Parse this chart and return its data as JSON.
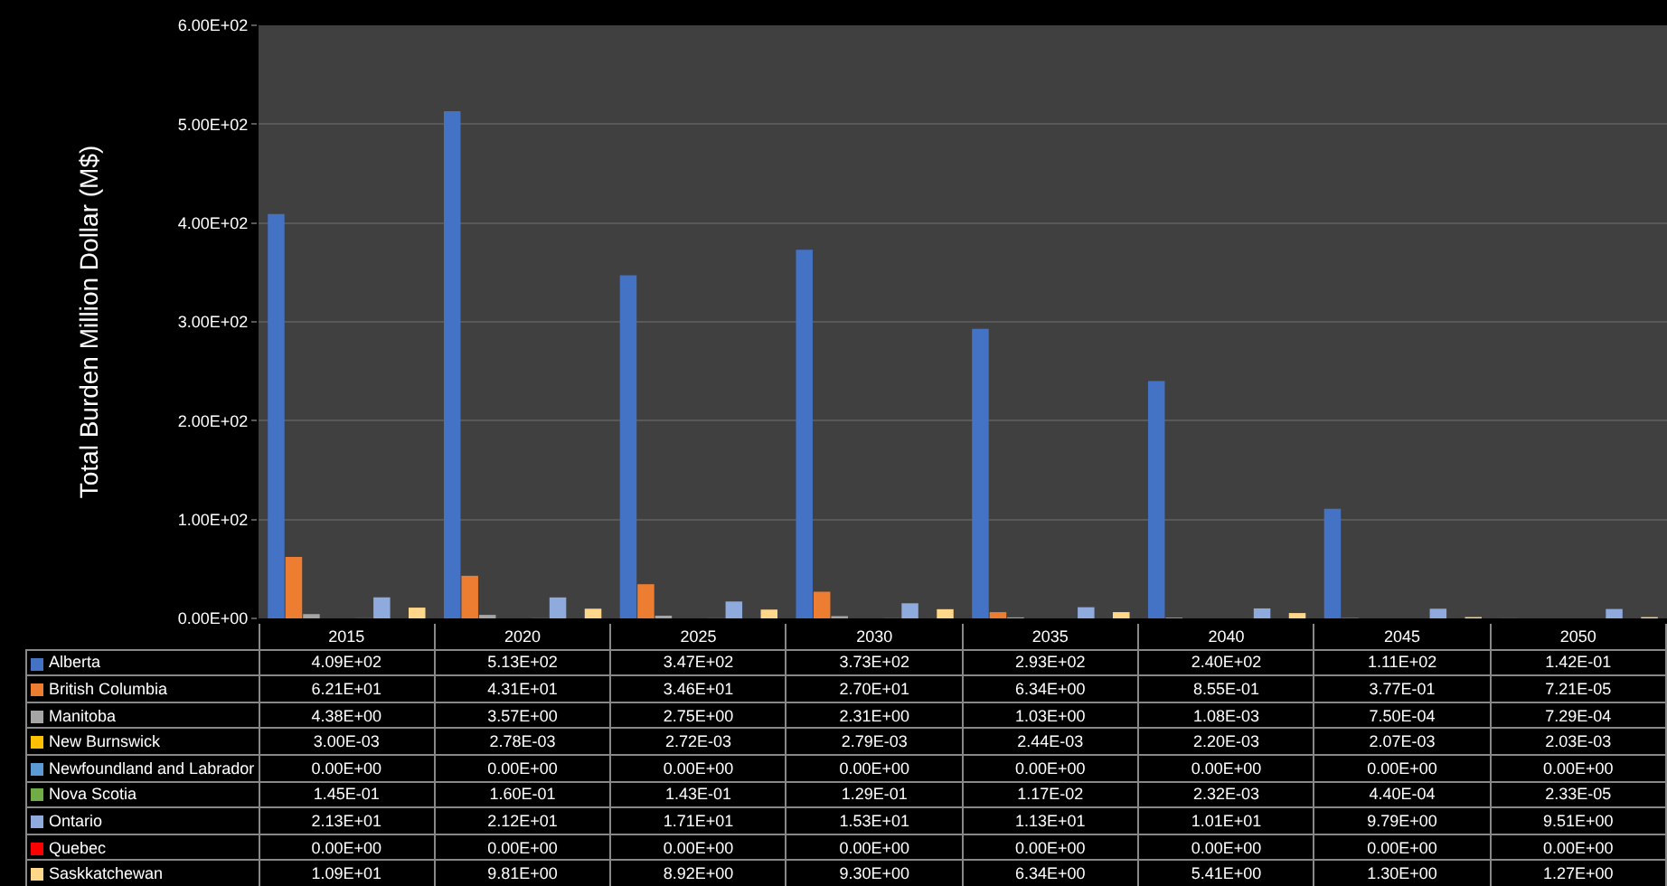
{
  "chart_data": {
    "type": "bar",
    "ylabel": "Total Burden Million Dollar (M$)",
    "categories": [
      "2015",
      "2020",
      "2025",
      "2030",
      "2035",
      "2040",
      "2045",
      "2050"
    ],
    "ylim": [
      0,
      600
    ],
    "yticks": [
      {
        "value": 0,
        "label": "0.00E+00"
      },
      {
        "value": 100,
        "label": "1.00E+02"
      },
      {
        "value": 200,
        "label": "2.00E+02"
      },
      {
        "value": 300,
        "label": "3.00E+02"
      },
      {
        "value": 400,
        "label": "4.00E+02"
      },
      {
        "value": 500,
        "label": "5.00E+02"
      },
      {
        "value": 600,
        "label": "6.00E+02"
      }
    ],
    "grid": "y",
    "legend": "bottom",
    "series": [
      {
        "name": "Alberta",
        "color": "#4472c4",
        "values": [
          409,
          513,
          347,
          373,
          293,
          240,
          111,
          0.142
        ],
        "value_labels": [
          "4.09E+02",
          "5.13E+02",
          "3.47E+02",
          "3.73E+02",
          "2.93E+02",
          "2.40E+02",
          "1.11E+02",
          "1.42E-01"
        ]
      },
      {
        "name": "British Columbia",
        "color": "#ed7d31",
        "values": [
          62.1,
          43.1,
          34.6,
          27.0,
          6.34,
          0.855,
          0.377,
          7.21e-05
        ],
        "value_labels": [
          "6.21E+01",
          "4.31E+01",
          "3.46E+01",
          "2.70E+01",
          "6.34E+00",
          "8.55E-01",
          "3.77E-01",
          "7.21E-05"
        ]
      },
      {
        "name": "Manitoba",
        "color": "#a5a5a5",
        "values": [
          4.38,
          3.57,
          2.75,
          2.31,
          1.03,
          0.00108,
          0.00075,
          0.000729
        ],
        "value_labels": [
          "4.38E+00",
          "3.57E+00",
          "2.75E+00",
          "2.31E+00",
          "1.03E+00",
          "1.08E-03",
          "7.50E-04",
          "7.29E-04"
        ]
      },
      {
        "name": "New Burnswick",
        "color": "#ffc000",
        "values": [
          0.003,
          0.00278,
          0.00272,
          0.00279,
          0.00244,
          0.0022,
          0.00207,
          0.00203
        ],
        "value_labels": [
          "3.00E-03",
          "2.78E-03",
          "2.72E-03",
          "2.79E-03",
          "2.44E-03",
          "2.20E-03",
          "2.07E-03",
          "2.03E-03"
        ]
      },
      {
        "name": "Newfoundland and Labrador",
        "color": "#5b9bd5",
        "values": [
          0,
          0,
          0,
          0,
          0,
          0,
          0,
          0
        ],
        "value_labels": [
          "0.00E+00",
          "0.00E+00",
          "0.00E+00",
          "0.00E+00",
          "0.00E+00",
          "0.00E+00",
          "0.00E+00",
          "0.00E+00"
        ]
      },
      {
        "name": "Nova Scotia",
        "color": "#70ad47",
        "values": [
          0.145,
          0.16,
          0.143,
          0.129,
          0.0117,
          0.00232,
          0.00044,
          2.33e-05
        ],
        "value_labels": [
          "1.45E-01",
          "1.60E-01",
          "1.43E-01",
          "1.29E-01",
          "1.17E-02",
          "2.32E-03",
          "4.40E-04",
          "2.33E-05"
        ]
      },
      {
        "name": "Ontario",
        "color": "#8faadc",
        "values": [
          21.3,
          21.2,
          17.1,
          15.3,
          11.3,
          10.1,
          9.79,
          9.51
        ],
        "value_labels": [
          "2.13E+01",
          "2.12E+01",
          "1.71E+01",
          "1.53E+01",
          "1.13E+01",
          "1.01E+01",
          "9.79E+00",
          "9.51E+00"
        ]
      },
      {
        "name": "Quebec",
        "color": "#ff0000",
        "values": [
          0,
          0,
          0,
          0,
          0,
          0,
          0,
          0
        ],
        "value_labels": [
          "0.00E+00",
          "0.00E+00",
          "0.00E+00",
          "0.00E+00",
          "0.00E+00",
          "0.00E+00",
          "0.00E+00",
          "0.00E+00"
        ]
      },
      {
        "name": "Saskkatchewan",
        "color": "#ffd78a",
        "values": [
          10.9,
          9.81,
          8.92,
          9.3,
          6.34,
          5.41,
          1.3,
          1.27
        ],
        "value_labels": [
          "1.09E+01",
          "9.81E+00",
          "8.92E+00",
          "9.30E+00",
          "6.34E+00",
          "5.41E+00",
          "1.30E+00",
          "1.27E+00"
        ]
      }
    ]
  }
}
